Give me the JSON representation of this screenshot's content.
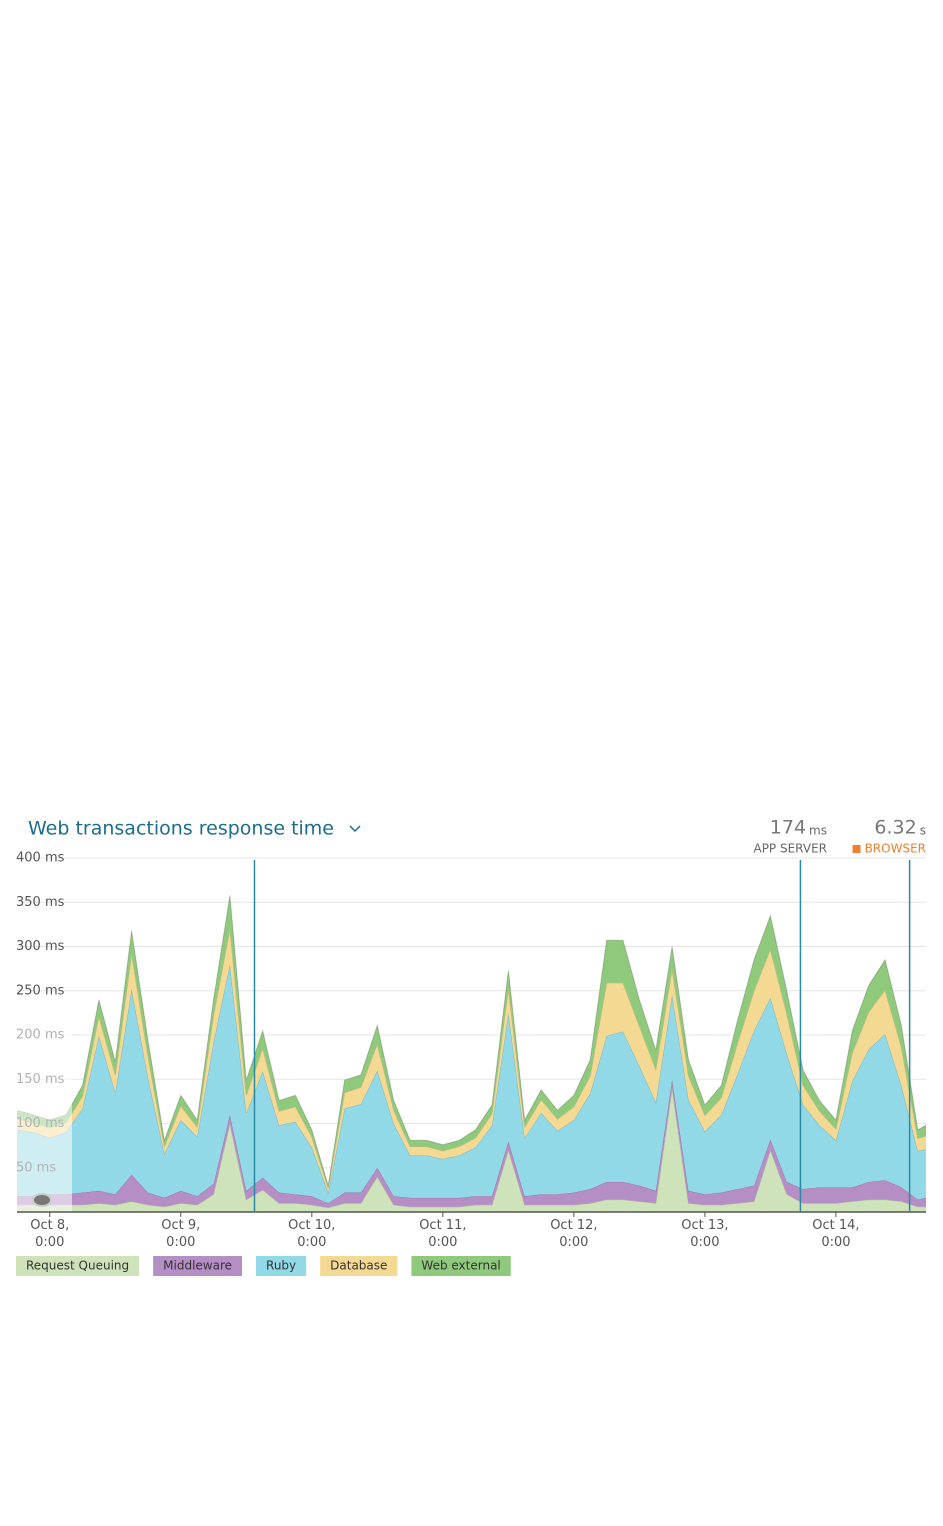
{
  "chart_data": {
    "type": "stacked-area",
    "title": "Web transactions response time",
    "summary": [
      {
        "value": 174,
        "unit": "ms",
        "label": "APP SERVER",
        "color": "#666666"
      },
      {
        "value": 6.32,
        "unit": "s",
        "label": "BROWSER",
        "color": "#f08030"
      }
    ],
    "x": [
      "Oct 7, 18:00",
      "Oct 7, 21:00",
      "Oct 8, 0:00",
      "Oct 8, 3:00",
      "Oct 8, 6:00",
      "Oct 8, 9:00",
      "Oct 8, 12:00",
      "Oct 8, 15:00",
      "Oct 8, 18:00",
      "Oct 8, 21:00",
      "Oct 9, 0:00",
      "Oct 9, 3:00",
      "Oct 9, 6:00",
      "Oct 9, 9:00",
      "Oct 9, 12:00",
      "Oct 9, 15:00",
      "Oct 9, 18:00",
      "Oct 9, 21:00",
      "Oct 10, 0:00",
      "Oct 10, 3:00",
      "Oct 10, 6:00",
      "Oct 10, 9:00",
      "Oct 10, 12:00",
      "Oct 10, 15:00",
      "Oct 10, 18:00",
      "Oct 10, 21:00",
      "Oct 11, 0:00",
      "Oct 11, 3:00",
      "Oct 11, 6:00",
      "Oct 11, 9:00",
      "Oct 11, 12:00",
      "Oct 11, 15:00",
      "Oct 11, 18:00",
      "Oct 11, 21:00",
      "Oct 12, 0:00",
      "Oct 12, 3:00",
      "Oct 12, 6:00",
      "Oct 12, 9:00",
      "Oct 12, 12:00",
      "Oct 12, 15:00",
      "Oct 12, 18:00",
      "Oct 12, 21:00",
      "Oct 13, 0:00",
      "Oct 13, 3:00",
      "Oct 13, 6:00",
      "Oct 13, 9:00",
      "Oct 13, 12:00",
      "Oct 13, 15:00",
      "Oct 13, 18:00",
      "Oct 13, 21:00",
      "Oct 14, 0:00",
      "Oct 14, 3:00",
      "Oct 14, 6:00",
      "Oct 14, 9:00",
      "Oct 14, 12:00",
      "Oct 14, 15:00",
      "Oct 14, 16:30"
    ],
    "series": [
      {
        "name": "Request Queuing",
        "color": "#cfe3bb",
        "values": [
          8,
          8,
          8,
          8,
          8,
          10,
          8,
          12,
          8,
          6,
          10,
          8,
          20,
          100,
          14,
          25,
          10,
          10,
          8,
          5,
          10,
          10,
          40,
          8,
          6,
          6,
          6,
          6,
          8,
          8,
          70,
          8,
          8,
          8,
          8,
          10,
          14,
          14,
          12,
          10,
          140,
          10,
          8,
          8,
          10,
          12,
          70,
          20,
          10,
          10,
          10,
          12,
          14,
          14,
          12,
          6,
          6
        ]
      },
      {
        "name": "Middleware",
        "color": "#b68ec6",
        "values": [
          10,
          10,
          12,
          12,
          14,
          14,
          12,
          30,
          14,
          10,
          14,
          10,
          12,
          10,
          10,
          14,
          12,
          10,
          10,
          5,
          12,
          12,
          10,
          10,
          10,
          10,
          10,
          10,
          10,
          10,
          10,
          10,
          12,
          12,
          14,
          16,
          20,
          20,
          18,
          14,
          10,
          14,
          12,
          14,
          16,
          18,
          12,
          14,
          16,
          18,
          18,
          16,
          20,
          22,
          16,
          8,
          10
        ]
      },
      {
        "name": "Ruby",
        "color": "#92d9e7",
        "values": [
          75,
          72,
          64,
          70,
          95,
          175,
          115,
          210,
          130,
          50,
          80,
          67,
          160,
          170,
          88,
          120,
          76,
          82,
          55,
          12,
          95,
          100,
          110,
          82,
          48,
          48,
          44,
          48,
          55,
          80,
          145,
          66,
          92,
          72,
          82,
          108,
          165,
          170,
          135,
          100,
          95,
          103,
          71,
          88,
          130,
          175,
          160,
          145,
          95,
          70,
          53,
          120,
          150,
          165,
          115,
          55,
          55
        ]
      },
      {
        "name": "Database",
        "color": "#f4d992",
        "values": [
          12,
          11,
          11,
          11,
          14,
          22,
          20,
          40,
          24,
          8,
          16,
          11,
          30,
          40,
          20,
          26,
          16,
          17,
          12,
          5,
          18,
          19,
          30,
          15,
          10,
          10,
          9,
          10,
          11,
          13,
          28,
          12,
          15,
          13,
          15,
          20,
          60,
          55,
          45,
          37,
          30,
          27,
          18,
          19,
          35,
          45,
          55,
          45,
          22,
          16,
          13,
          32,
          42,
          50,
          43,
          14,
          15
        ]
      },
      {
        "name": "Web external",
        "color": "#8fca7c",
        "values": [
          10,
          9,
          9,
          9,
          12,
          19,
          15,
          26,
          18,
          7,
          12,
          8,
          18,
          38,
          17,
          20,
          12,
          13,
          8,
          3,
          14,
          14,
          21,
          11,
          7,
          7,
          7,
          7,
          9,
          10,
          20,
          8,
          11,
          10,
          13,
          18,
          48,
          48,
          30,
          22,
          25,
          18,
          12,
          14,
          26,
          35,
          38,
          26,
          17,
          12,
          10,
          25,
          30,
          34,
          25,
          10,
          12
        ]
      }
    ],
    "xlim": [
      "Oct 7, 18:00",
      "Oct 14, 16:30"
    ],
    "xticks": [
      "Oct 8, 0:00",
      "Oct 9, 0:00",
      "Oct 10, 0:00",
      "Oct 11, 0:00",
      "Oct 12, 0:00",
      "Oct 13, 0:00",
      "Oct 14, 0:00"
    ],
    "ylim": [
      0,
      400
    ],
    "yticks": [
      {
        "value": 50,
        "label": "50 ms"
      },
      {
        "value": 100,
        "label": "100 ms"
      },
      {
        "value": 150,
        "label": "150 ms"
      },
      {
        "value": 200,
        "label": "200 ms"
      },
      {
        "value": 250,
        "label": "250 ms"
      },
      {
        "value": 300,
        "label": "300 ms"
      },
      {
        "value": 350,
        "label": "350 ms"
      },
      {
        "value": 400,
        "label": "400 ms"
      }
    ],
    "deploy_markers": [
      "Oct 9, 13:30",
      "Oct 13, 17:30",
      "Oct 14, 13:30"
    ],
    "marker_color": "#2b8aa3",
    "grid": true
  }
}
